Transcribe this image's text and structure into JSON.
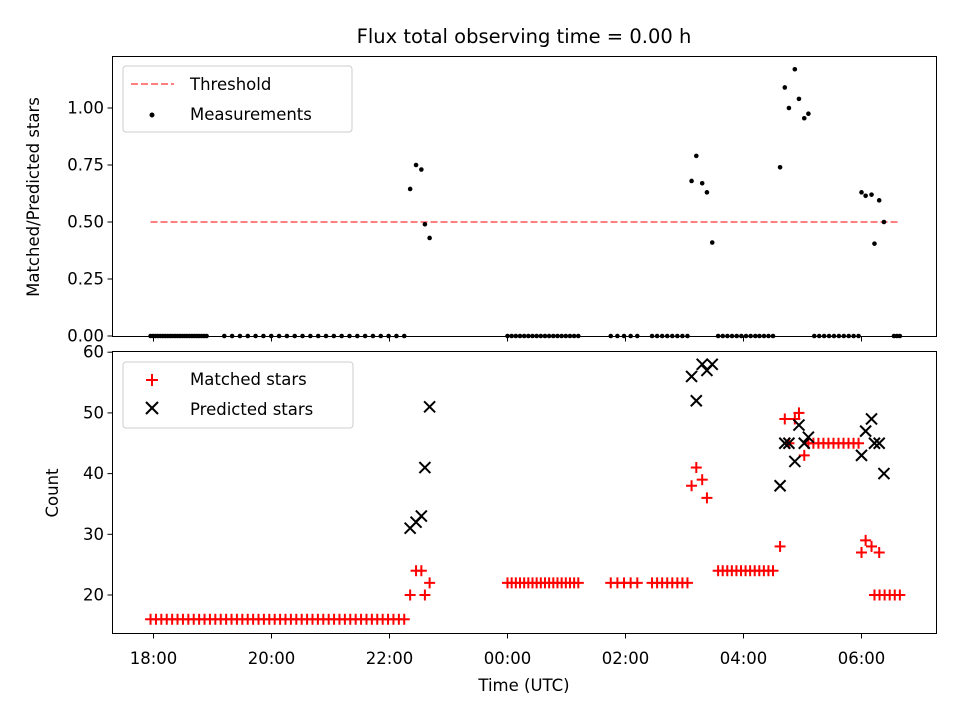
{
  "chart_data": [
    {
      "type": "scatter",
      "title": "Flux total observing time = 0.00 h",
      "xlabel": "",
      "ylabel": "Matched/Predicted stars",
      "ylim": [
        0,
        1.23
      ],
      "yticks": [
        "0.00",
        "0.25",
        "0.50",
        "0.75",
        "1.00"
      ],
      "xticks": [
        "18:00",
        "20:00",
        "22:00",
        "00:00",
        "02:00",
        "04:00",
        "06:00"
      ],
      "x_unit": "hours since 18:00 UTC",
      "legend_position": "top-left",
      "threshold": {
        "name": "Threshold",
        "value": 0.5,
        "x_range": [
          -0.05,
          12.65
        ],
        "color": "#ff7f7f",
        "style": "dashed"
      },
      "series": [
        {
          "name": "Measurements",
          "color": "#000000",
          "marker": "dot",
          "points": [
            [
              4.35,
              0.645
            ],
            [
              4.45,
              0.75
            ],
            [
              4.54,
              0.73
            ],
            [
              4.6,
              0.49
            ],
            [
              4.68,
              0.43
            ],
            [
              9.12,
              0.68
            ],
            [
              9.2,
              0.79
            ],
            [
              9.3,
              0.67
            ],
            [
              9.38,
              0.63
            ],
            [
              9.47,
              0.41
            ],
            [
              10.62,
              0.74
            ],
            [
              10.7,
              1.09
            ],
            [
              10.77,
              1.0
            ],
            [
              10.87,
              1.17
            ],
            [
              10.94,
              1.04
            ],
            [
              11.03,
              0.955
            ],
            [
              11.1,
              0.975
            ],
            [
              12.0,
              0.63
            ],
            [
              12.07,
              0.615
            ],
            [
              12.17,
              0.62
            ],
            [
              12.22,
              0.405
            ],
            [
              12.3,
              0.595
            ],
            [
              12.38,
              0.5
            ]
          ],
          "zero_ranges": [
            [
              -0.05,
              0.9,
              24
            ],
            [
              1.2,
              4.25,
              24
            ],
            [
              6.0,
              7.2,
              18
            ],
            [
              7.75,
              8.2,
              5
            ],
            [
              8.45,
              9.05,
              8
            ],
            [
              9.57,
              10.2,
              9
            ],
            [
              10.27,
              10.5,
              4
            ],
            [
              11.2,
              11.95,
              10
            ],
            [
              12.55,
              12.65,
              3
            ]
          ]
        }
      ]
    },
    {
      "type": "scatter",
      "title": "",
      "xlabel": "Time (UTC)",
      "ylabel": "Count",
      "ylim": [
        13.8,
        60
      ],
      "yticks": [
        "20",
        "30",
        "40",
        "50",
        "60"
      ],
      "xticks": [
        "18:00",
        "20:00",
        "22:00",
        "00:00",
        "02:00",
        "04:00",
        "06:00"
      ],
      "x_unit": "hours since 18:00 UTC",
      "legend_position": "top-left",
      "series": [
        {
          "name": "Matched stars",
          "color": "#ff0000",
          "marker": "plus",
          "points": [
            [
              4.35,
              20
            ],
            [
              4.45,
              24
            ],
            [
              4.54,
              24
            ],
            [
              4.6,
              20
            ],
            [
              4.68,
              22
            ],
            [
              9.12,
              38
            ],
            [
              9.2,
              41
            ],
            [
              9.3,
              39
            ],
            [
              9.38,
              36
            ],
            [
              10.62,
              28
            ],
            [
              10.7,
              49
            ],
            [
              10.77,
              45
            ],
            [
              10.87,
              49
            ],
            [
              10.94,
              50
            ],
            [
              11.03,
              43
            ],
            [
              12.0,
              27
            ],
            [
              12.07,
              29
            ],
            [
              12.17,
              28
            ],
            [
              12.3,
              27
            ]
          ],
          "constant_ranges": [
            [
              -0.05,
              4.25,
              16,
              48
            ],
            [
              6.0,
              7.2,
              22,
              18
            ],
            [
              7.75,
              8.2,
              22,
              5
            ],
            [
              8.45,
              9.05,
              22,
              8
            ],
            [
              9.57,
              10.5,
              24,
              13
            ],
            [
              11.1,
              11.95,
              45,
              11
            ],
            [
              12.22,
              12.65,
              20,
              6
            ]
          ]
        },
        {
          "name": "Predicted stars",
          "color": "#000000",
          "marker": "x",
          "points": [
            [
              4.35,
              31
            ],
            [
              4.45,
              32
            ],
            [
              4.54,
              33
            ],
            [
              4.6,
              41
            ],
            [
              4.68,
              51
            ],
            [
              9.12,
              56
            ],
            [
              9.2,
              52
            ],
            [
              9.3,
              58
            ],
            [
              9.38,
              57
            ],
            [
              9.47,
              58
            ],
            [
              10.62,
              38
            ],
            [
              10.7,
              45
            ],
            [
              10.77,
              45
            ],
            [
              10.87,
              42
            ],
            [
              10.94,
              48
            ],
            [
              11.03,
              45
            ],
            [
              11.1,
              46
            ],
            [
              12.0,
              43
            ],
            [
              12.07,
              47
            ],
            [
              12.17,
              49
            ],
            [
              12.22,
              45
            ],
            [
              12.3,
              45
            ],
            [
              12.38,
              40
            ]
          ]
        }
      ]
    }
  ]
}
